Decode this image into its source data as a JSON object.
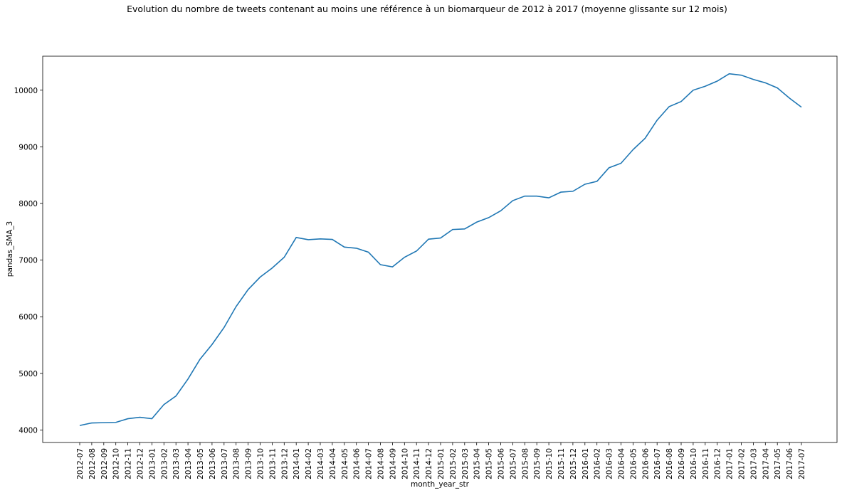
{
  "chart_data": {
    "type": "line",
    "title": "Evolution du nombre de tweets contenant au moins une référence à un biomarqueur de 2012 à 2017 (moyenne glissante sur 12 mois)",
    "xlabel": "month_year_str",
    "ylabel": "pandas_SMA_3",
    "ylim": [
      3780,
      10600
    ],
    "yticks": [
      4000,
      5000,
      6000,
      7000,
      8000,
      9000,
      10000
    ],
    "grid": false,
    "line_color": "#1f77b4",
    "categories": [
      "2012-07",
      "2012-08",
      "2012-09",
      "2012-10",
      "2012-11",
      "2012-12",
      "2013-01",
      "2013-02",
      "2013-03",
      "2013-04",
      "2013-05",
      "2013-06",
      "2013-07",
      "2013-08",
      "2013-09",
      "2013-10",
      "2013-11",
      "2013-12",
      "2014-01",
      "2014-02",
      "2014-03",
      "2014-04",
      "2014-05",
      "2014-06",
      "2014-07",
      "2014-08",
      "2014-09",
      "2014-10",
      "2014-11",
      "2014-12",
      "2015-01",
      "2015-02",
      "2015-03",
      "2015-04",
      "2015-05",
      "2015-06",
      "2015-07",
      "2015-08",
      "2015-09",
      "2015-10",
      "2015-11",
      "2015-12",
      "2016-01",
      "2016-02",
      "2016-03",
      "2016-04",
      "2016-05",
      "2016-06",
      "2016-07",
      "2016-08",
      "2016-09",
      "2016-10",
      "2016-11",
      "2016-12",
      "2017-01",
      "2017-02",
      "2017-03",
      "2017-04",
      "2017-05",
      "2017-06",
      "2017-07"
    ],
    "values": [
      4080,
      4125,
      4130,
      4135,
      4200,
      4225,
      4200,
      4450,
      4600,
      4900,
      5250,
      5510,
      5810,
      6180,
      6480,
      6700,
      6860,
      7050,
      7400,
      7360,
      7375,
      7365,
      7230,
      7210,
      7140,
      6920,
      6880,
      7050,
      7160,
      7370,
      7390,
      7540,
      7550,
      7670,
      7750,
      7870,
      8050,
      8130,
      8130,
      8100,
      8200,
      8215,
      8340,
      8390,
      8630,
      8710,
      8950,
      9150,
      9470,
      9710,
      9800,
      10000,
      10070,
      10160,
      10290,
      10265,
      10190,
      10130,
      10040,
      9860,
      9700
    ]
  }
}
